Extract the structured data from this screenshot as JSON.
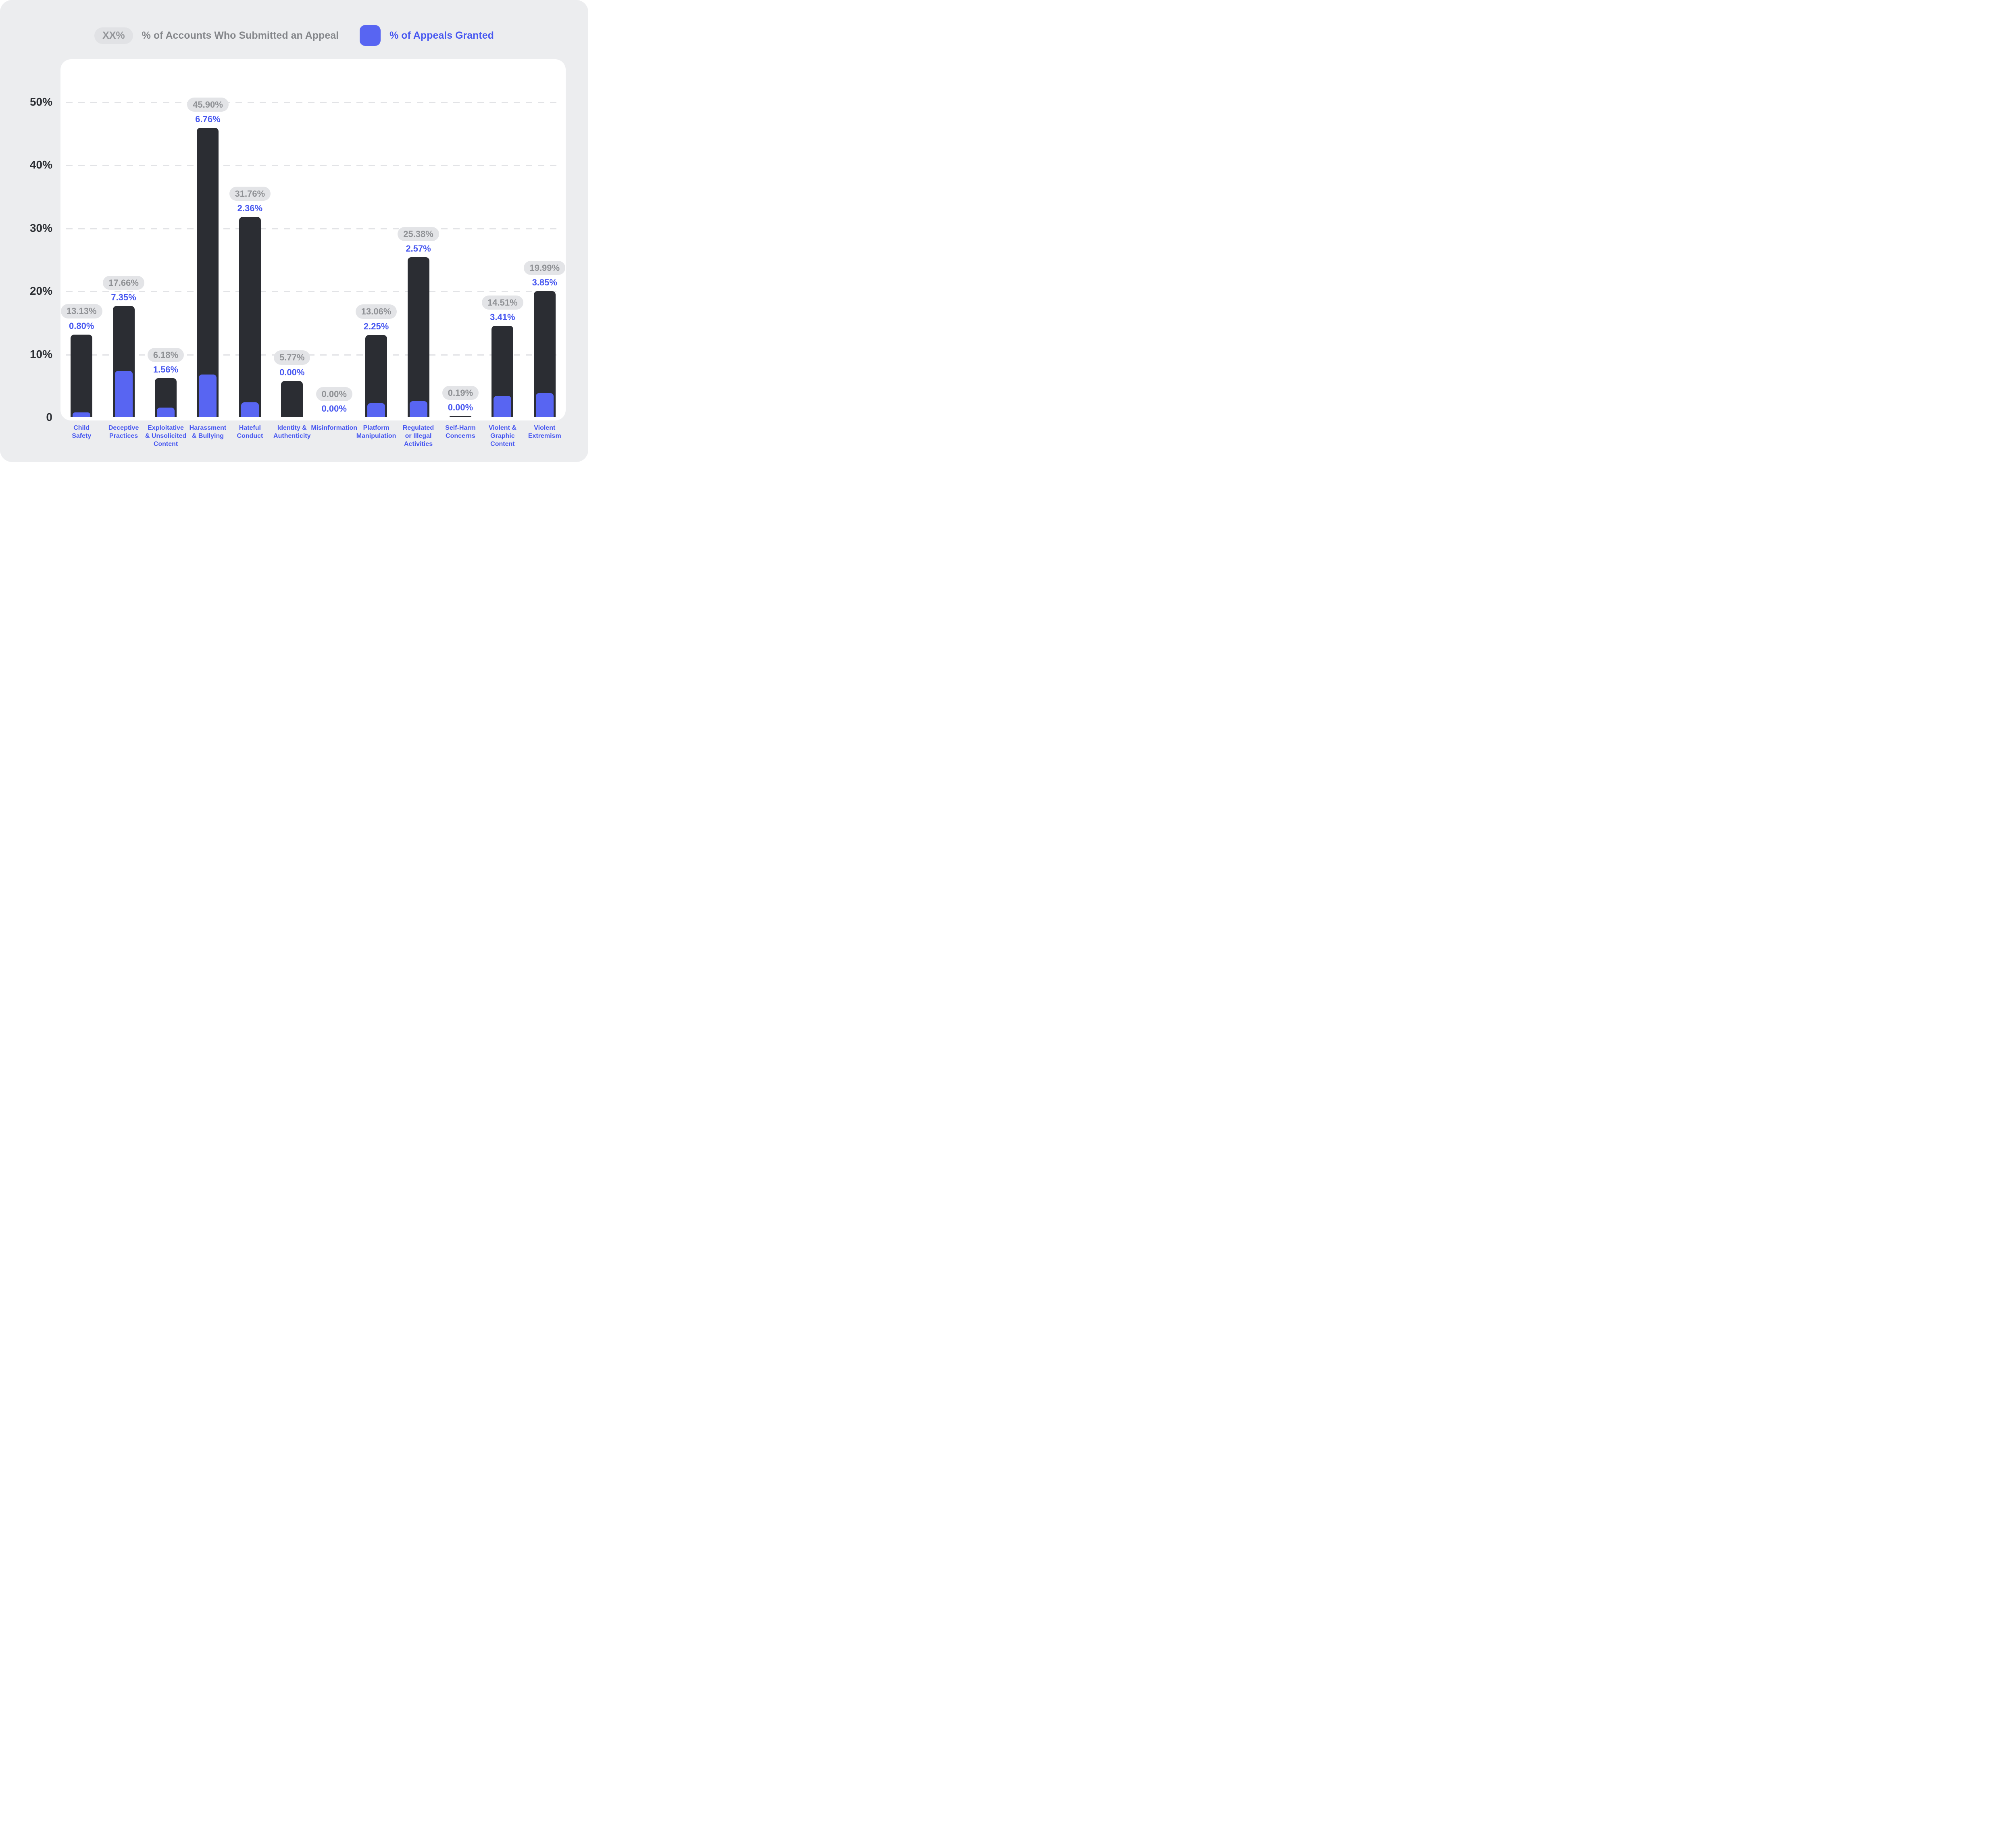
{
  "legend": {
    "sample_label": "XX%",
    "appeals_submitted_label": "% of Accounts Who Submitted an Appeal",
    "appeals_granted_label": "% of Appeals Granted"
  },
  "colors": {
    "background": "#ECEDEF",
    "card": "#FFFFFF",
    "bar_dark": "#2B2D33",
    "bar_blue": "#5865F2",
    "pill_bg": "#E3E4E7",
    "pill_text": "#8F9195",
    "blue_text": "#4757F0",
    "axis_text": "#2C2F34",
    "gridline": "#E2E3E6"
  },
  "chart_data": {
    "type": "bar",
    "title": "",
    "xlabel": "",
    "ylabel": "",
    "ylim": [
      0,
      50
    ],
    "grid": "dashed-horizontal",
    "legend_position": "top",
    "categories": [
      "Child\nSafety",
      "Deceptive\nPractices",
      "Exploitative\n& Unsolicited\nContent",
      "Harassment\n& Bullying",
      "Hateful\nConduct",
      "Identity &\nAuthenticity",
      "Misinformation",
      "Platform\nManipulation",
      "Regulated\nor Illegal\nActivities",
      "Self-Harm\nConcerns",
      "Violent &\nGraphic\nContent",
      "Violent\nExtremism"
    ],
    "series": [
      {
        "name": "% of Accounts Who Submitted an Appeal",
        "values": [
          13.13,
          17.66,
          6.18,
          45.9,
          31.76,
          5.77,
          0.0,
          13.06,
          25.38,
          0.19,
          14.51,
          19.99
        ]
      },
      {
        "name": "% of Appeals Granted",
        "values": [
          0.8,
          7.35,
          1.56,
          6.76,
          2.36,
          0.0,
          0.0,
          2.25,
          2.57,
          0.0,
          3.41,
          3.85
        ]
      }
    ],
    "value_labels": {
      "submitted": [
        "13.13%",
        "17.66%",
        "6.18%",
        "45.90%",
        "31.76%",
        "5.77%",
        "0.00%",
        "13.06%",
        "25.38%",
        "0.19%",
        "14.51%",
        "19.99%"
      ],
      "granted": [
        "0.80%",
        "7.35%",
        "1.56%",
        "6.76%",
        "2.36%",
        "0.00%",
        "0.00%",
        "2.25%",
        "2.57%",
        "0.00%",
        "3.41%",
        "3.85%"
      ]
    },
    "y_ticks": [
      {
        "label": "0",
        "value": 0
      },
      {
        "label": "10%",
        "value": 10
      },
      {
        "label": "20%",
        "value": 20
      },
      {
        "label": "30%",
        "value": 30
      },
      {
        "label": "40%",
        "value": 40
      },
      {
        "label": "50%",
        "value": 50
      }
    ]
  }
}
